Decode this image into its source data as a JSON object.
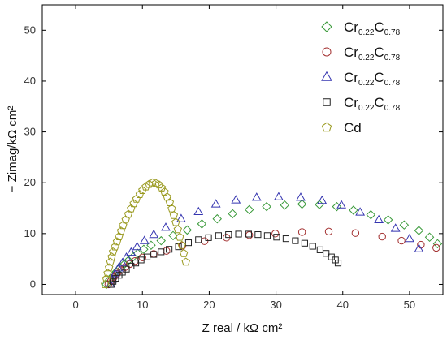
{
  "chart_data": {
    "type": "scatter",
    "title": "",
    "xlabel": "Z real / kΩ cm²",
    "ylabel": "− Zimag/kΩ cm²",
    "xlim": [
      -5,
      55
    ],
    "ylim": [
      -2,
      55
    ],
    "xticks": [
      "0",
      "10",
      "20",
      "30",
      "40",
      "50"
    ],
    "yticks": [
      "0",
      "10",
      "20",
      "30",
      "40",
      "50"
    ],
    "grid": false,
    "legend_position": "top-right",
    "series": [
      {
        "name": "Cr0.22C0.78",
        "label_main": "Cr",
        "label_sub1": "0.22",
        "label_mid": "C",
        "label_sub2": "0.78",
        "marker": "diamond",
        "color": "#3a9a3a",
        "x": [
          4.6,
          5.1,
          5.6,
          6.1,
          6.7,
          7.3,
          7.9,
          8.6,
          9.3,
          10.2,
          11.3,
          12.8,
          14.6,
          16.7,
          18.9,
          21.2,
          23.5,
          26.0,
          28.6,
          31.3,
          33.9,
          36.5,
          39.1,
          41.6,
          44.2,
          46.8,
          49.2,
          51.4,
          53.0,
          54.2
        ],
        "y": [
          0.0,
          0.9,
          1.7,
          2.5,
          3.3,
          4.0,
          4.7,
          5.4,
          6.1,
          6.9,
          7.7,
          8.6,
          9.6,
          10.7,
          11.9,
          12.9,
          13.9,
          14.7,
          15.3,
          15.6,
          15.8,
          15.7,
          15.3,
          14.6,
          13.7,
          12.7,
          11.7,
          10.6,
          9.3,
          8.0
        ]
      },
      {
        "name": "Cr0.22C0.78",
        "label_main": "Cr",
        "label_sub1": "0.22",
        "label_mid": "C",
        "label_sub2": "0.78",
        "marker": "circle",
        "color": "#a33030",
        "x": [
          4.9,
          5.3,
          5.7,
          6.2,
          6.8,
          7.4,
          8.1,
          8.9,
          10.0,
          11.7,
          13.6,
          16.0,
          19.3,
          22.6,
          26.0,
          29.9,
          33.9,
          37.9,
          41.9,
          45.9,
          48.8,
          51.7,
          54.0
        ],
        "y": [
          0.0,
          0.7,
          1.4,
          2.1,
          2.8,
          3.4,
          4.0,
          4.6,
          5.3,
          6.0,
          6.6,
          7.6,
          8.5,
          9.2,
          9.7,
          10.0,
          10.3,
          10.4,
          10.1,
          9.4,
          8.6,
          7.8,
          7.2
        ]
      },
      {
        "name": "Cr0.22C0.78",
        "label_main": "Cr",
        "label_sub1": "0.22",
        "label_mid": "C",
        "label_sub2": "0.78",
        "marker": "triangle",
        "color": "#3535b0",
        "x": [
          5.2,
          5.5,
          5.9,
          6.4,
          7.0,
          7.6,
          8.3,
          9.2,
          10.3,
          11.7,
          13.5,
          15.8,
          18.4,
          21.0,
          24.0,
          27.1,
          30.4,
          33.7,
          36.9,
          39.8,
          42.6,
          45.4,
          47.9,
          50.0,
          51.4
        ],
        "y": [
          0.0,
          1.0,
          2.1,
          3.2,
          4.2,
          5.3,
          6.3,
          7.4,
          8.6,
          9.8,
          11.2,
          12.9,
          14.3,
          15.8,
          16.6,
          17.1,
          17.2,
          17.1,
          16.5,
          15.6,
          14.2,
          12.7,
          11.0,
          9.0,
          7.0
        ]
      },
      {
        "name": "Cr0.22C0.78",
        "label_main": "Cr",
        "label_sub1": "0.22",
        "label_mid": "C",
        "label_sub2": "0.78",
        "marker": "square",
        "color": "#222222",
        "x": [
          5.3,
          5.6,
          6.0,
          6.5,
          7.0,
          7.6,
          8.3,
          9.0,
          9.8,
          10.7,
          11.7,
          12.8,
          14.0,
          15.4,
          16.9,
          18.4,
          19.9,
          21.4,
          22.9,
          24.4,
          25.9,
          27.3,
          28.7,
          30.1,
          31.5,
          32.9,
          34.3,
          35.5,
          36.6,
          37.5,
          38.3,
          38.9,
          39.3
        ],
        "y": [
          0.0,
          0.6,
          1.2,
          1.8,
          2.4,
          3.0,
          3.6,
          4.2,
          4.8,
          5.4,
          5.9,
          6.4,
          6.9,
          7.4,
          8.2,
          8.8,
          9.2,
          9.6,
          9.8,
          9.9,
          9.9,
          9.8,
          9.6,
          9.3,
          9.0,
          8.6,
          8.1,
          7.5,
          6.8,
          6.1,
          5.4,
          4.8,
          4.2
        ]
      },
      {
        "name": "Cd",
        "label_main": "Cd",
        "label_sub1": "",
        "label_mid": "",
        "label_sub2": "",
        "marker": "pentagon",
        "color": "#9a9a20",
        "x": [
          4.4,
          4.6,
          4.8,
          5.0,
          5.2,
          5.4,
          5.6,
          5.9,
          6.2,
          6.5,
          6.8,
          7.1,
          7.5,
          7.9,
          8.3,
          8.7,
          9.1,
          9.6,
          10.0,
          10.5,
          11.0,
          11.5,
          12.0,
          12.5,
          12.9,
          13.3,
          13.7,
          14.1,
          14.4,
          14.7,
          15.0,
          15.3,
          15.6,
          15.9,
          16.2,
          16.5
        ],
        "y": [
          0.0,
          1.1,
          2.2,
          3.3,
          4.4,
          5.4,
          6.4,
          7.4,
          8.4,
          9.4,
          10.5,
          11.6,
          12.7,
          13.8,
          14.9,
          15.9,
          16.8,
          17.7,
          18.5,
          19.2,
          19.7,
          20.0,
          19.9,
          19.6,
          19.0,
          18.2,
          17.2,
          16.1,
          14.9,
          13.6,
          12.2,
          10.8,
          9.3,
          7.7,
          6.1,
          4.4
        ]
      }
    ]
  }
}
